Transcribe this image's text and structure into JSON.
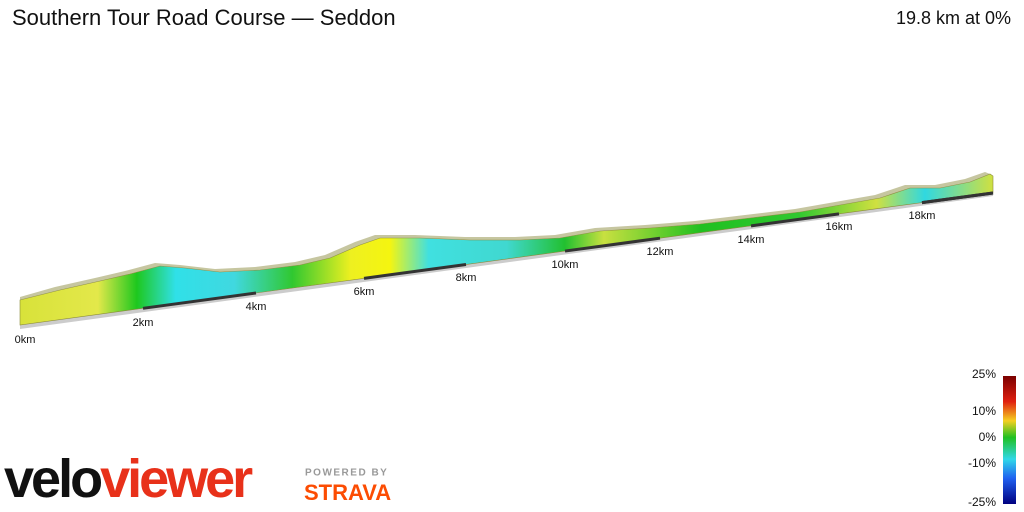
{
  "header": {
    "title": "Southern Tour Road Course — Seddon",
    "summary": "19.8 km at 0%"
  },
  "distance_markers": [
    "0km",
    "2km",
    "4km",
    "6km",
    "8km",
    "10km",
    "12km",
    "14km",
    "16km",
    "18km"
  ],
  "gradient_scale": {
    "labels": [
      "25%",
      "10%",
      "0%",
      "-10%",
      "-25%"
    ]
  },
  "branding": {
    "logo_first": "velo",
    "logo_second": "viewer",
    "powered_by": "POWERED BY",
    "partner": "STRAVA"
  }
}
